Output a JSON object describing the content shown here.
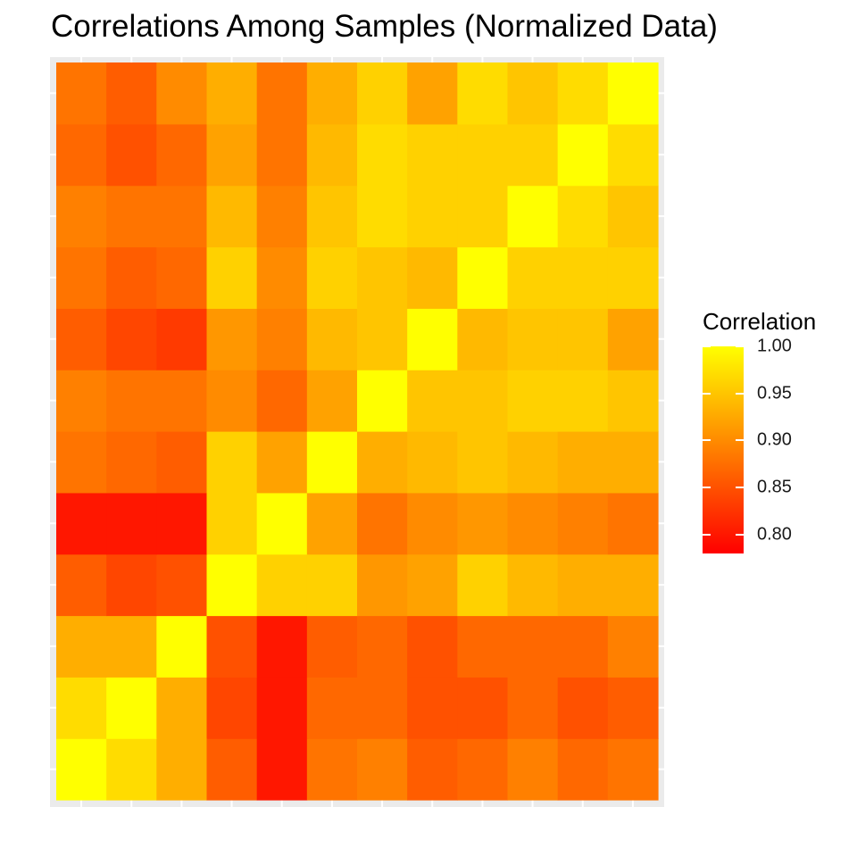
{
  "chart_data": {
    "type": "heatmap",
    "title": "Correlations Among Samples (Normalized Data)",
    "n_samples": 12,
    "matrix": [
      [
        1.0,
        0.97,
        0.93,
        0.86,
        0.8,
        0.88,
        0.89,
        0.86,
        0.87,
        0.89,
        0.87,
        0.88
      ],
      [
        0.97,
        1.0,
        0.93,
        0.84,
        0.8,
        0.87,
        0.87,
        0.85,
        0.85,
        0.87,
        0.85,
        0.86
      ],
      [
        0.93,
        0.93,
        1.0,
        0.85,
        0.8,
        0.86,
        0.87,
        0.85,
        0.87,
        0.87,
        0.87,
        0.89
      ],
      [
        0.86,
        0.84,
        0.85,
        1.0,
        0.96,
        0.96,
        0.91,
        0.92,
        0.96,
        0.94,
        0.93,
        0.93
      ],
      [
        0.8,
        0.8,
        0.8,
        0.96,
        1.0,
        0.92,
        0.88,
        0.9,
        0.91,
        0.9,
        0.89,
        0.88
      ],
      [
        0.88,
        0.87,
        0.86,
        0.96,
        0.92,
        1.0,
        0.93,
        0.94,
        0.95,
        0.94,
        0.93,
        0.93
      ],
      [
        0.89,
        0.88,
        0.88,
        0.9,
        0.87,
        0.92,
        1.0,
        0.95,
        0.95,
        0.96,
        0.96,
        0.95
      ],
      [
        0.86,
        0.84,
        0.83,
        0.91,
        0.89,
        0.94,
        0.95,
        1.0,
        0.94,
        0.95,
        0.95,
        0.92
      ],
      [
        0.88,
        0.86,
        0.87,
        0.96,
        0.9,
        0.96,
        0.95,
        0.94,
        1.0,
        0.96,
        0.96,
        0.96
      ],
      [
        0.89,
        0.88,
        0.88,
        0.94,
        0.89,
        0.95,
        0.97,
        0.96,
        0.96,
        1.0,
        0.97,
        0.95
      ],
      [
        0.87,
        0.85,
        0.87,
        0.92,
        0.88,
        0.94,
        0.97,
        0.96,
        0.96,
        0.96,
        1.0,
        0.97
      ],
      [
        0.88,
        0.86,
        0.9,
        0.93,
        0.88,
        0.93,
        0.96,
        0.92,
        0.97,
        0.95,
        0.97,
        1.0
      ]
    ],
    "color_scale": {
      "low_color": "#ff0000",
      "high_color": "#ffff00",
      "min": 0.78,
      "max": 1.0
    },
    "legend": {
      "title": "Correlation",
      "ticks": [
        {
          "value": 1.0,
          "label": "1.00"
        },
        {
          "value": 0.95,
          "label": "0.95"
        },
        {
          "value": 0.9,
          "label": "0.90"
        },
        {
          "value": 0.85,
          "label": "0.85"
        },
        {
          "value": 0.8,
          "label": "0.80"
        }
      ],
      "placement": "right"
    },
    "xlabel": "",
    "ylabel": "",
    "grid": true
  },
  "colors": {
    "panel_background": "#ebebeb",
    "grid_line": "#ffffff"
  }
}
